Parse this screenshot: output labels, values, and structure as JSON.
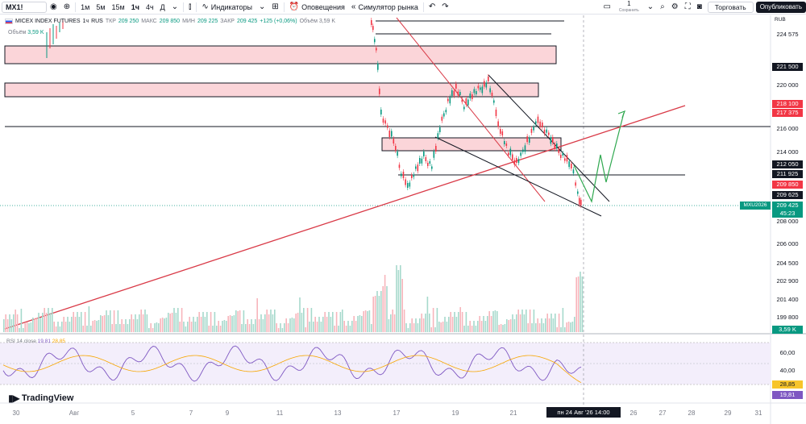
{
  "toolbar": {
    "symbol": "MX1!",
    "intervals": [
      "1м",
      "5м",
      "15м",
      "1ч",
      "4ч",
      "Д"
    ],
    "active_interval": "1ч",
    "indicators": "Индикаторы",
    "alerts": "Оповещения",
    "replay": "Симулятор рынка",
    "save_count": "1",
    "save_label": "Сохранить",
    "trade": "Торговать",
    "publish": "Опубликовать"
  },
  "legend": {
    "title": "MICEX INDEX FUTURES",
    "interval": "1ч",
    "exchange": "RUS",
    "open_label": "ТКР",
    "open": "209 250",
    "high_label": "МАКС",
    "high": "209 850",
    "low_label": "МИН",
    "low": "209 225",
    "close_label": "ЗАКР",
    "close": "209 425",
    "change": "+125 (+0,06%)",
    "volume_inline": "Объём 3,59 K",
    "volume_label": "Объём",
    "volume_value": "3,59 K",
    "rsi_label": "RSI 14 close",
    "rsi_value": "19,81",
    "rsi_ma": "28,85"
  },
  "currency": "RUB",
  "symbol_tag": "MXU2026",
  "price_scale": [
    {
      "text": "224 575",
      "style": "plain",
      "top": 38
    },
    {
      "text": "221 500",
      "style": "tag-black",
      "top": 78
    },
    {
      "text": "220 000",
      "style": "plain",
      "top": 101
    },
    {
      "text": "218 100",
      "style": "tag-red",
      "top": 124
    },
    {
      "text": "217 375",
      "style": "tag-red",
      "top": 135
    },
    {
      "text": "216 000",
      "style": "plain",
      "top": 155
    },
    {
      "text": "214 000",
      "style": "plain",
      "top": 184
    },
    {
      "text": "212 050",
      "style": "tag-black",
      "top": 199
    },
    {
      "text": "211 925",
      "style": "tag-black",
      "top": 211
    },
    {
      "text": "209 850",
      "style": "tag-red",
      "top": 224
    },
    {
      "text": "209 625",
      "style": "tag-black",
      "top": 237
    },
    {
      "text": "209 425",
      "style": "tag-green",
      "top": 250
    },
    {
      "text": "45:23",
      "style": "tag-green",
      "top": 260
    },
    {
      "text": "208 000",
      "style": "plain",
      "top": 270
    },
    {
      "text": "206 000",
      "style": "plain",
      "top": 298
    },
    {
      "text": "204 500",
      "style": "plain",
      "top": 322
    },
    {
      "text": "202 900",
      "style": "plain",
      "top": 344
    },
    {
      "text": "201 400",
      "style": "plain",
      "top": 367
    },
    {
      "text": "199 800",
      "style": "plain",
      "top": 389
    },
    {
      "text": "3,59 K",
      "style": "tag-green",
      "top": 404
    },
    {
      "text": "60,00",
      "style": "plain",
      "top": 433
    },
    {
      "text": "40,00",
      "style": "plain",
      "top": 455
    },
    {
      "text": "28,85",
      "style": "tag-yellow",
      "top": 472
    },
    {
      "text": "19,81",
      "style": "tag-purple",
      "top": 485
    }
  ],
  "time_axis": [
    {
      "text": "30",
      "x": 20
    },
    {
      "text": "Авг",
      "x": 92
    },
    {
      "text": "5",
      "x": 165
    },
    {
      "text": "7",
      "x": 237
    },
    {
      "text": "9",
      "x": 282
    },
    {
      "text": "11",
      "x": 347
    },
    {
      "text": "13",
      "x": 419
    },
    {
      "text": "17",
      "x": 492
    },
    {
      "text": "19",
      "x": 565
    },
    {
      "text": "21",
      "x": 637
    },
    {
      "text": "26",
      "x": 786
    },
    {
      "text": "27",
      "x": 822
    },
    {
      "text": "28",
      "x": 858
    },
    {
      "text": "29",
      "x": 903
    },
    {
      "text": "31",
      "x": 941
    }
  ],
  "time_cursor": "пн 24 Авг '26   14:00",
  "brand": "TradingView",
  "colors": {
    "up": "#089981",
    "down": "#f23645",
    "trendline": "#d93a47",
    "zone_fill": "#fbd5d9",
    "rsi": "#7e57c2",
    "rsi_ma": "#f7a600",
    "projection": "#2fa84f"
  }
}
